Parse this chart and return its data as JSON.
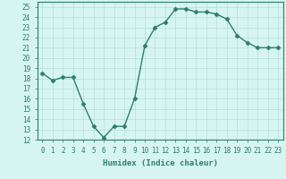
{
  "x": [
    0,
    1,
    2,
    3,
    4,
    5,
    6,
    7,
    8,
    9,
    10,
    11,
    12,
    13,
    14,
    15,
    16,
    17,
    18,
    19,
    20,
    21,
    22,
    23
  ],
  "y": [
    18.5,
    17.8,
    18.1,
    18.1,
    15.5,
    13.3,
    12.2,
    13.3,
    13.3,
    16.0,
    21.2,
    23.0,
    23.5,
    24.8,
    24.8,
    24.5,
    24.5,
    24.3,
    23.8,
    22.2,
    21.5,
    21.0,
    21.0,
    21.0
  ],
  "line_color": "#2e7d6e",
  "marker": "D",
  "marker_size": 2.5,
  "bg_color": "#d6f5f0",
  "grid_color": "#b8ddd8",
  "xlabel": "Humidex (Indice chaleur)",
  "ylabel": "",
  "xlim": [
    -0.5,
    23.5
  ],
  "ylim": [
    12,
    25.5
  ],
  "yticks": [
    12,
    13,
    14,
    15,
    16,
    17,
    18,
    19,
    20,
    21,
    22,
    23,
    24,
    25
  ],
  "xticks": [
    0,
    1,
    2,
    3,
    4,
    5,
    6,
    7,
    8,
    9,
    10,
    11,
    12,
    13,
    14,
    15,
    16,
    17,
    18,
    19,
    20,
    21,
    22,
    23
  ],
  "tick_fontsize": 5.5,
  "xlabel_fontsize": 6.5,
  "line_width": 1.0
}
